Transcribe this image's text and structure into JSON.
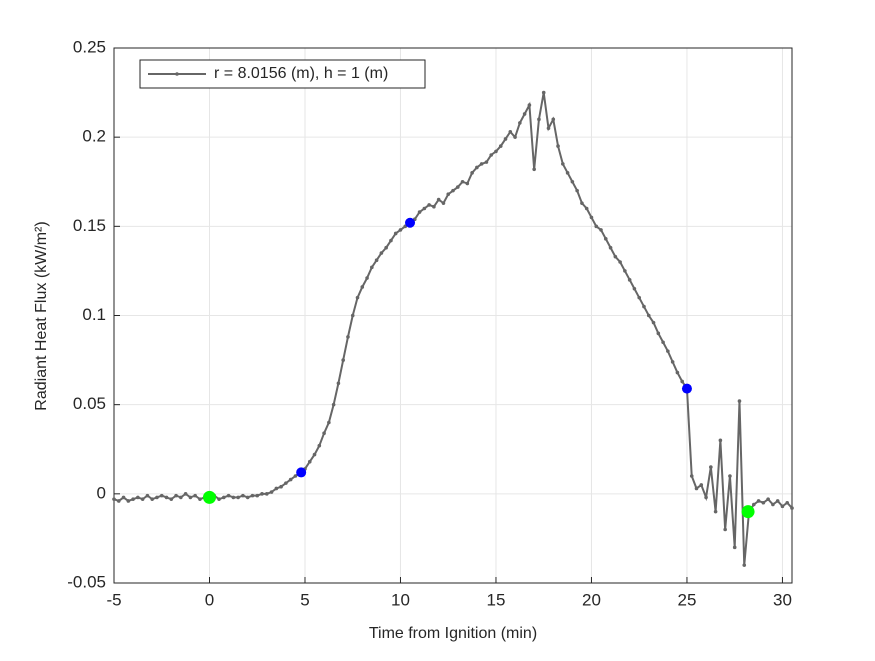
{
  "chart_data": {
    "type": "line",
    "xlabel": "Time from Ignition (min)",
    "ylabel": "Radiant Heat Flux (kW/m²)",
    "xlim": [
      -5,
      30.5
    ],
    "xticks": [
      -5,
      0,
      5,
      10,
      15,
      20,
      25,
      30
    ],
    "ylim": [
      -0.05,
      0.25
    ],
    "yticks": [
      -0.05,
      0,
      0.05,
      0.1,
      0.15,
      0.2,
      0.25
    ],
    "grid": true,
    "legend": "northwest",
    "series": [
      {
        "name": "r = 8.0156 (m), h = 1 (m)",
        "color": "#666666",
        "x": [
          -5,
          -4.75,
          -4.5,
          -4.25,
          -4,
          -3.75,
          -3.5,
          -3.25,
          -3,
          -2.75,
          -2.5,
          -2.25,
          -2,
          -1.75,
          -1.5,
          -1.25,
          -1,
          -0.75,
          -0.5,
          -0.25,
          0,
          0.25,
          0.5,
          0.75,
          1,
          1.25,
          1.5,
          1.75,
          2,
          2.25,
          2.5,
          2.75,
          3,
          3.25,
          3.5,
          3.75,
          4,
          4.25,
          4.5,
          4.75,
          5,
          5.25,
          5.5,
          5.75,
          6,
          6.25,
          6.5,
          6.75,
          7,
          7.25,
          7.5,
          7.75,
          8,
          8.25,
          8.5,
          8.75,
          9,
          9.25,
          9.5,
          9.75,
          10,
          10.25,
          10.5,
          10.75,
          11,
          11.25,
          11.5,
          11.75,
          12,
          12.25,
          12.5,
          12.75,
          13,
          13.25,
          13.5,
          13.75,
          14,
          14.25,
          14.5,
          14.75,
          15,
          15.25,
          15.5,
          15.75,
          16,
          16.25,
          16.5,
          16.75,
          17,
          17.25,
          17.5,
          17.75,
          18,
          18.25,
          18.5,
          18.75,
          19,
          19.25,
          19.5,
          19.75,
          20,
          20.25,
          20.5,
          20.75,
          21,
          21.25,
          21.5,
          21.75,
          22,
          22.25,
          22.5,
          22.75,
          23,
          23.25,
          23.5,
          23.75,
          24,
          24.25,
          24.5,
          24.75,
          25,
          25.25,
          25.5,
          25.75,
          26,
          26.25,
          26.5,
          26.75,
          27,
          27.25,
          27.5,
          27.75,
          28,
          28.25,
          28.5,
          28.75,
          29,
          29.25,
          29.5,
          29.75,
          30,
          30.25,
          30.5
        ],
        "values": [
          -0.003,
          -0.004,
          -0.002,
          -0.004,
          -0.003,
          -0.002,
          -0.003,
          -0.001,
          -0.003,
          -0.002,
          -0.001,
          -0.002,
          -0.003,
          -0.001,
          -0.002,
          0.0,
          -0.002,
          -0.001,
          -0.003,
          -0.002,
          -0.002,
          -0.001,
          -0.003,
          -0.002,
          -0.001,
          -0.002,
          -0.002,
          -0.001,
          -0.002,
          -0.001,
          -0.001,
          0.0,
          0.0,
          0.001,
          0.003,
          0.004,
          0.006,
          0.008,
          0.01,
          0.012,
          0.014,
          0.018,
          0.022,
          0.027,
          0.034,
          0.04,
          0.05,
          0.062,
          0.075,
          0.088,
          0.1,
          0.11,
          0.116,
          0.121,
          0.127,
          0.131,
          0.135,
          0.138,
          0.142,
          0.146,
          0.148,
          0.15,
          0.152,
          0.154,
          0.158,
          0.16,
          0.162,
          0.161,
          0.165,
          0.163,
          0.168,
          0.17,
          0.172,
          0.175,
          0.174,
          0.18,
          0.183,
          0.185,
          0.186,
          0.19,
          0.192,
          0.195,
          0.199,
          0.203,
          0.2,
          0.208,
          0.213,
          0.218,
          0.182,
          0.21,
          0.225,
          0.205,
          0.21,
          0.195,
          0.185,
          0.18,
          0.175,
          0.17,
          0.163,
          0.16,
          0.155,
          0.15,
          0.148,
          0.143,
          0.138,
          0.133,
          0.13,
          0.125,
          0.12,
          0.115,
          0.11,
          0.105,
          0.1,
          0.096,
          0.09,
          0.085,
          0.08,
          0.074,
          0.068,
          0.063,
          0.059,
          0.01,
          0.003,
          0.005,
          -0.002,
          0.015,
          -0.01,
          0.03,
          -0.02,
          0.01,
          -0.03,
          0.052,
          -0.04,
          -0.01,
          -0.006,
          -0.004,
          -0.005,
          -0.003,
          -0.006,
          -0.004,
          -0.007,
          -0.005,
          -0.008
        ]
      },
      {
        "color": "#0000ff",
        "x": [
          4.8,
          10.5,
          25
        ],
        "values": [
          0.012,
          0.152,
          0.059
        ]
      },
      {
        "color": "#00ff00",
        "x": [
          0,
          28.2
        ],
        "values": [
          -0.002,
          -0.01
        ]
      }
    ]
  }
}
